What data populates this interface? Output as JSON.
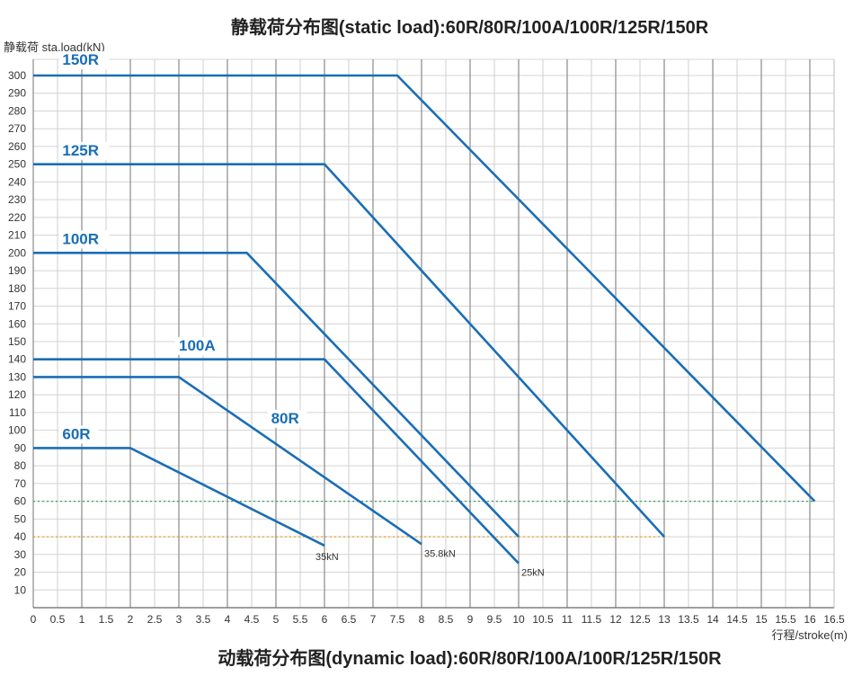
{
  "chart_data": {
    "type": "line",
    "title": "静载荷分布图(static load):60R/80R/100A/100R/125R/150R",
    "subtitle": "动载荷分布图(dynamic load):60R/80R/100A/100R/125R/150R",
    "ylabel": "静载荷 sta.load(kN)",
    "xlabel": "行程/stroke(m)",
    "xlim": [
      0,
      16.5
    ],
    "ylim": [
      0,
      300
    ],
    "x_ticks": [
      "0",
      "0.5",
      "1",
      "1.5",
      "2",
      "2.5",
      "3",
      "3.5",
      "4",
      "4.5",
      "5",
      "5.5",
      "6",
      "6.5",
      "7",
      "7.5",
      "8",
      "8.5",
      "9",
      "9.5",
      "10",
      "10.5",
      "11",
      "11.5",
      "12",
      "12.5",
      "13",
      "13.5",
      "14",
      "14.5",
      "15",
      "15.5",
      "16",
      "16.5"
    ],
    "y_ticks": [
      "10",
      "20",
      "30",
      "40",
      "50",
      "60",
      "70",
      "80",
      "90",
      "100",
      "110",
      "120",
      "130",
      "140",
      "150",
      "160",
      "170",
      "180",
      "190",
      "200",
      "210",
      "220",
      "230",
      "240",
      "250",
      "260",
      "270",
      "280",
      "290",
      "300"
    ],
    "grid": true,
    "line_color": "#1a6eb5",
    "series": [
      {
        "name": "150R",
        "points": [
          [
            0,
            300
          ],
          [
            7.5,
            300
          ],
          [
            16.1,
            60
          ]
        ]
      },
      {
        "name": "125R",
        "points": [
          [
            0,
            250
          ],
          [
            6,
            250
          ],
          [
            13,
            40
          ]
        ]
      },
      {
        "name": "100R",
        "points": [
          [
            0,
            200
          ],
          [
            4.4,
            200
          ],
          [
            10,
            40
          ]
        ]
      },
      {
        "name": "100A",
        "points": [
          [
            0,
            140
          ],
          [
            6,
            140
          ],
          [
            10,
            25
          ]
        ],
        "end_label": "25kN"
      },
      {
        "name": "80R",
        "points": [
          [
            0,
            130
          ],
          [
            3,
            130
          ],
          [
            8,
            35.8
          ]
        ],
        "end_label": "35.8kN"
      },
      {
        "name": "60R",
        "points": [
          [
            0,
            90
          ],
          [
            2,
            90
          ],
          [
            6,
            35
          ]
        ],
        "end_label": "35kN"
      }
    ],
    "reference_lines": [
      {
        "y": 60,
        "color": "#3aa05a",
        "style": "dotted"
      },
      {
        "y": 40,
        "color": "#f0900a",
        "style": "dotted"
      }
    ]
  }
}
